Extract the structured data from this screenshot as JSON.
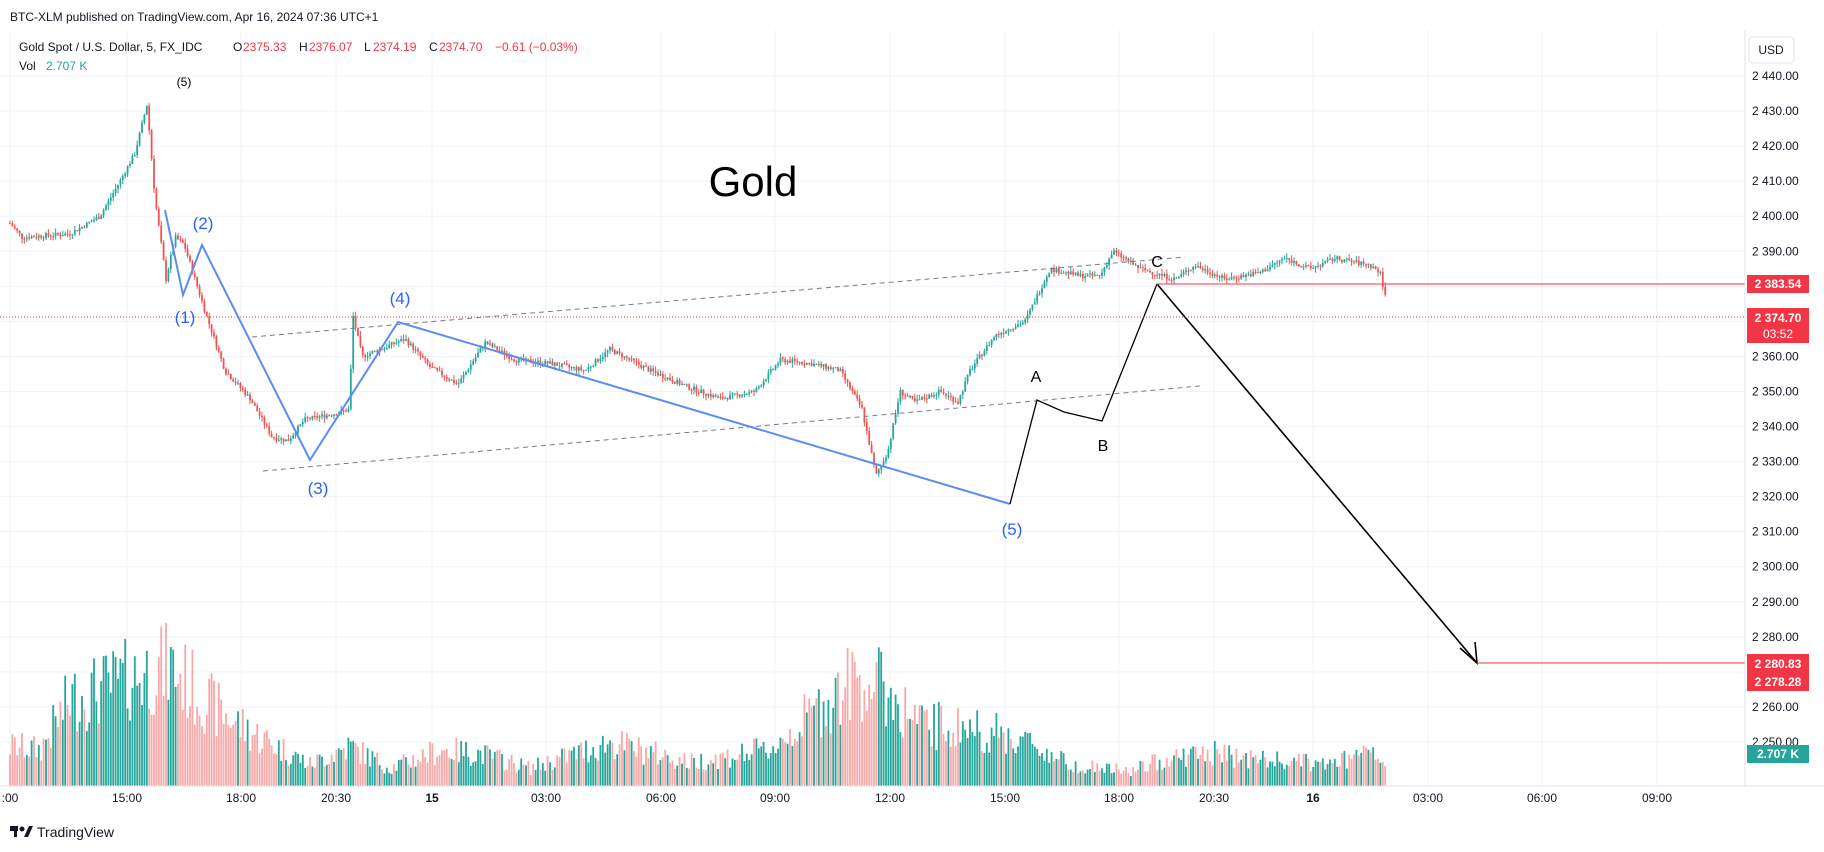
{
  "header": {
    "publisher_line": "BTC-XLM published on TradingView.com, Apr 16, 2024 07:36 UTC+1"
  },
  "legend": {
    "symbol": "Gold Spot / U.S. Dollar, 5, FX_IDC",
    "o_label": "O",
    "o_value": "2375.33",
    "h_label": "H",
    "h_value": "2376.07",
    "l_label": "L",
    "l_value": "2374.19",
    "c_label": "C",
    "c_value": "2374.70",
    "change": "−0.61 (−0.03%)",
    "vol_label": "Vol",
    "vol_value": "2.707 K"
  },
  "currency_button": "USD",
  "footer": {
    "logo_text": "TradingView"
  },
  "colors": {
    "up": "#26a69a",
    "down": "#ef5350",
    "wave_blue": "#5b8def",
    "wave_label_blue": "#2962ff",
    "price_line_red": "#f23645",
    "grid": "#f0f3fa",
    "axis_text": "#131722",
    "label_black": "#000000"
  },
  "chart_data": {
    "type": "candlestick",
    "title": "Gold",
    "y_axis": {
      "min": 2250,
      "max": 2440,
      "ticks": [
        "2 440.00",
        "2 430.00",
        "2 420.00",
        "2 410.00",
        "2 400.00",
        "2 390.00",
        "2 380.00",
        "2 370.00",
        "2 360.00",
        "2 350.00",
        "2 340.00",
        "2 330.00",
        "2 320.00",
        "2 310.00",
        "2 300.00",
        "2 290.00",
        "2 280.00",
        "2 270.00",
        "2 260.00",
        "2 250.00"
      ]
    },
    "x_axis": {
      "tick_labels": [
        ":00",
        "15:00",
        "18:00",
        "20:30",
        "15",
        "03:00",
        "06:00",
        "09:00",
        "12:00",
        "15:00",
        "18:00",
        "20:30",
        "16",
        "03:00",
        "06:00",
        "09:00"
      ]
    },
    "price_path": [
      {
        "t": 0,
        "p": 2398
      },
      {
        "t": 12,
        "p": 2394
      },
      {
        "t": 60,
        "p": 2395
      },
      {
        "t": 90,
        "p": 2400
      },
      {
        "t": 110,
        "p": 2410
      },
      {
        "t": 125,
        "p": 2418
      },
      {
        "t": 137,
        "p": 2432
      },
      {
        "t": 145,
        "p": 2405
      },
      {
        "t": 156,
        "p": 2382
      },
      {
        "t": 165,
        "p": 2394
      },
      {
        "t": 174,
        "p": 2392
      },
      {
        "t": 196,
        "p": 2372
      },
      {
        "t": 215,
        "p": 2356
      },
      {
        "t": 240,
        "p": 2348
      },
      {
        "t": 262,
        "p": 2337
      },
      {
        "t": 278,
        "p": 2336
      },
      {
        "t": 295,
        "p": 2342
      },
      {
        "t": 330,
        "p": 2344
      },
      {
        "t": 340,
        "p": 2345
      },
      {
        "t": 342,
        "p": 2373
      },
      {
        "t": 352,
        "p": 2360
      },
      {
        "t": 370,
        "p": 2362
      },
      {
        "t": 395,
        "p": 2365
      },
      {
        "t": 420,
        "p": 2357
      },
      {
        "t": 448,
        "p": 2352
      },
      {
        "t": 475,
        "p": 2364
      },
      {
        "t": 505,
        "p": 2359
      },
      {
        "t": 540,
        "p": 2358
      },
      {
        "t": 575,
        "p": 2356
      },
      {
        "t": 600,
        "p": 2362
      },
      {
        "t": 640,
        "p": 2356
      },
      {
        "t": 680,
        "p": 2351
      },
      {
        "t": 710,
        "p": 2348
      },
      {
        "t": 745,
        "p": 2350
      },
      {
        "t": 770,
        "p": 2359
      },
      {
        "t": 800,
        "p": 2358
      },
      {
        "t": 830,
        "p": 2356
      },
      {
        "t": 852,
        "p": 2345
      },
      {
        "t": 866,
        "p": 2326
      },
      {
        "t": 878,
        "p": 2333
      },
      {
        "t": 890,
        "p": 2350
      },
      {
        "t": 905,
        "p": 2347
      },
      {
        "t": 930,
        "p": 2350
      },
      {
        "t": 948,
        "p": 2347
      },
      {
        "t": 960,
        "p": 2356
      },
      {
        "t": 985,
        "p": 2366
      },
      {
        "t": 1015,
        "p": 2370
      },
      {
        "t": 1040,
        "p": 2385
      },
      {
        "t": 1070,
        "p": 2383
      },
      {
        "t": 1090,
        "p": 2383
      },
      {
        "t": 1103,
        "p": 2390
      },
      {
        "t": 1130,
        "p": 2385
      },
      {
        "t": 1165,
        "p": 2382
      },
      {
        "t": 1185,
        "p": 2386
      },
      {
        "t": 1215,
        "p": 2382
      },
      {
        "t": 1250,
        "p": 2384
      },
      {
        "t": 1275,
        "p": 2388
      },
      {
        "t": 1300,
        "p": 2385
      },
      {
        "t": 1325,
        "p": 2388
      },
      {
        "t": 1360,
        "p": 2386
      },
      {
        "t": 1370,
        "p": 2384
      },
      {
        "t": 1377,
        "p": 2375
      }
    ],
    "volume_axis": {
      "min": 0,
      "max": 100
    },
    "volume_profile": [
      {
        "t": 0,
        "v": 22
      },
      {
        "t": 30,
        "v": 20
      },
      {
        "t": 60,
        "v": 48
      },
      {
        "t": 100,
        "v": 55
      },
      {
        "t": 140,
        "v": 63
      },
      {
        "t": 160,
        "v": 66
      },
      {
        "t": 200,
        "v": 45
      },
      {
        "t": 240,
        "v": 30
      },
      {
        "t": 300,
        "v": 12
      },
      {
        "t": 340,
        "v": 22
      },
      {
        "t": 380,
        "v": 10
      },
      {
        "t": 430,
        "v": 20
      },
      {
        "t": 470,
        "v": 18
      },
      {
        "t": 520,
        "v": 10
      },
      {
        "t": 600,
        "v": 24
      },
      {
        "t": 680,
        "v": 13
      },
      {
        "t": 760,
        "v": 20
      },
      {
        "t": 815,
        "v": 46
      },
      {
        "t": 850,
        "v": 60
      },
      {
        "t": 870,
        "v": 55
      },
      {
        "t": 910,
        "v": 34
      },
      {
        "t": 960,
        "v": 32
      },
      {
        "t": 1010,
        "v": 26
      },
      {
        "t": 1060,
        "v": 12
      },
      {
        "t": 1120,
        "v": 8
      },
      {
        "t": 1160,
        "v": 16
      },
      {
        "t": 1200,
        "v": 18
      },
      {
        "t": 1260,
        "v": 14
      },
      {
        "t": 1320,
        "v": 12
      },
      {
        "t": 1360,
        "v": 18
      },
      {
        "t": 1377,
        "v": 10
      }
    ],
    "wave_labels_blue": [
      "(1)",
      "(2)",
      "(3)",
      "(4)",
      "(5)"
    ],
    "wave_label_top": "(5)",
    "abc_labels": [
      "A",
      "B",
      "C"
    ],
    "price_tags": [
      {
        "label": "2 383.54",
        "value": 2383.54
      },
      {
        "label": "2 374.70",
        "value": 2374.7,
        "countdown": "03:52"
      },
      {
        "label": "2 280.83",
        "value": 2280.83
      },
      {
        "label": "2 278.28",
        "value": 2278.28
      }
    ],
    "volume_tag": "2.707 K"
  }
}
